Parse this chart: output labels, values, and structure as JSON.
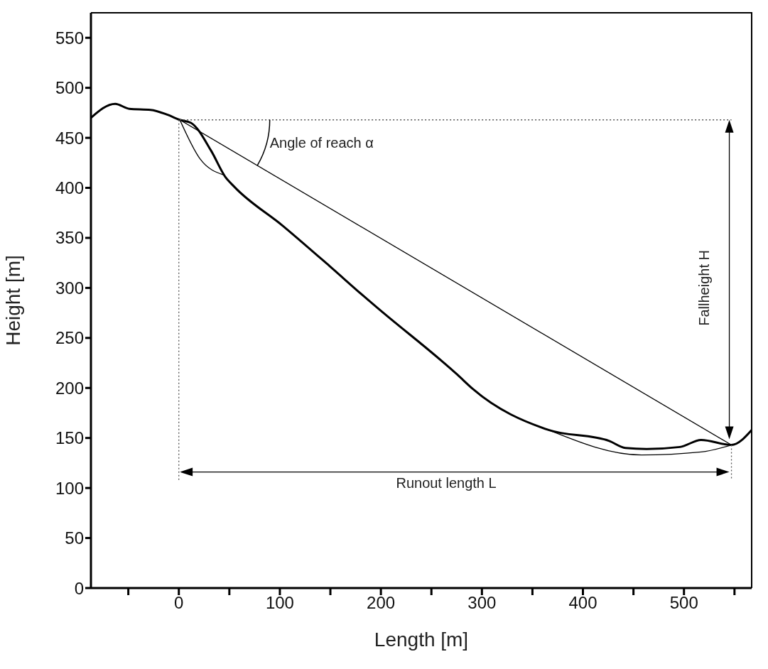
{
  "chart_data": {
    "type": "line",
    "xlabel": "Length [m]",
    "ylabel": "Height [m]",
    "xlim": [
      -87,
      567
    ],
    "ylim": [
      0,
      575
    ],
    "xticks": [
      {
        "value": -50,
        "label": null
      },
      0,
      {
        "value": 50,
        "label": null
      },
      100,
      {
        "value": 150,
        "label": null
      },
      200,
      {
        "value": 250,
        "label": null
      },
      300,
      {
        "value": 350,
        "label": null
      },
      400,
      {
        "value": 450,
        "label": null
      },
      500,
      {
        "value": 550,
        "label": null
      }
    ],
    "yticks": [
      0,
      50,
      100,
      150,
      200,
      250,
      300,
      350,
      400,
      450,
      500,
      550
    ],
    "line_style": "solid",
    "series": [
      {
        "color": "#000000",
        "x": [
          -87,
          -63,
          -49,
          -28,
          -11,
          1,
          12,
          32,
          46,
          55,
          103,
          149,
          185,
          199,
          276,
          291,
          366,
          426,
          442,
          463,
          496,
          517,
          547,
          567
        ],
        "values": [
          470,
          484,
          479,
          478,
          473,
          468,
          465,
          437,
          411,
          401,
          362,
          322,
          290,
          278,
          213,
          199,
          158,
          147,
          140,
          139,
          141,
          148,
          143,
          158
        ]
      },
      {
        "color": "#000000",
        "x": [
          1,
          21,
          44
        ],
        "values": [
          468,
          429,
          413
        ]
      },
      {
        "color": "#000000",
        "x": [
          366,
          458,
          517,
          547
        ],
        "values": [
          158,
          133,
          136,
          143
        ]
      },
      {
        "color": "#000000",
        "x": [
          1,
          547
        ],
        "values": [
          468,
          143
        ]
      },
      {
        "color": "#555555",
        "line_style": "dotted",
        "x": [
          1,
          547
        ],
        "values": [
          468,
          468
        ]
      },
      {
        "color": "#555555",
        "line_style": "dotted",
        "x": [
          0,
          0
        ],
        "values": [
          468,
          108
        ]
      },
      {
        "color": "#555555",
        "line_style": "dotted",
        "x": [
          547,
          547
        ],
        "values": [
          143,
          108
        ]
      }
    ],
    "annotations": [
      "Angle of reach α",
      "Fallheight H",
      "Runout length L"
    ]
  }
}
